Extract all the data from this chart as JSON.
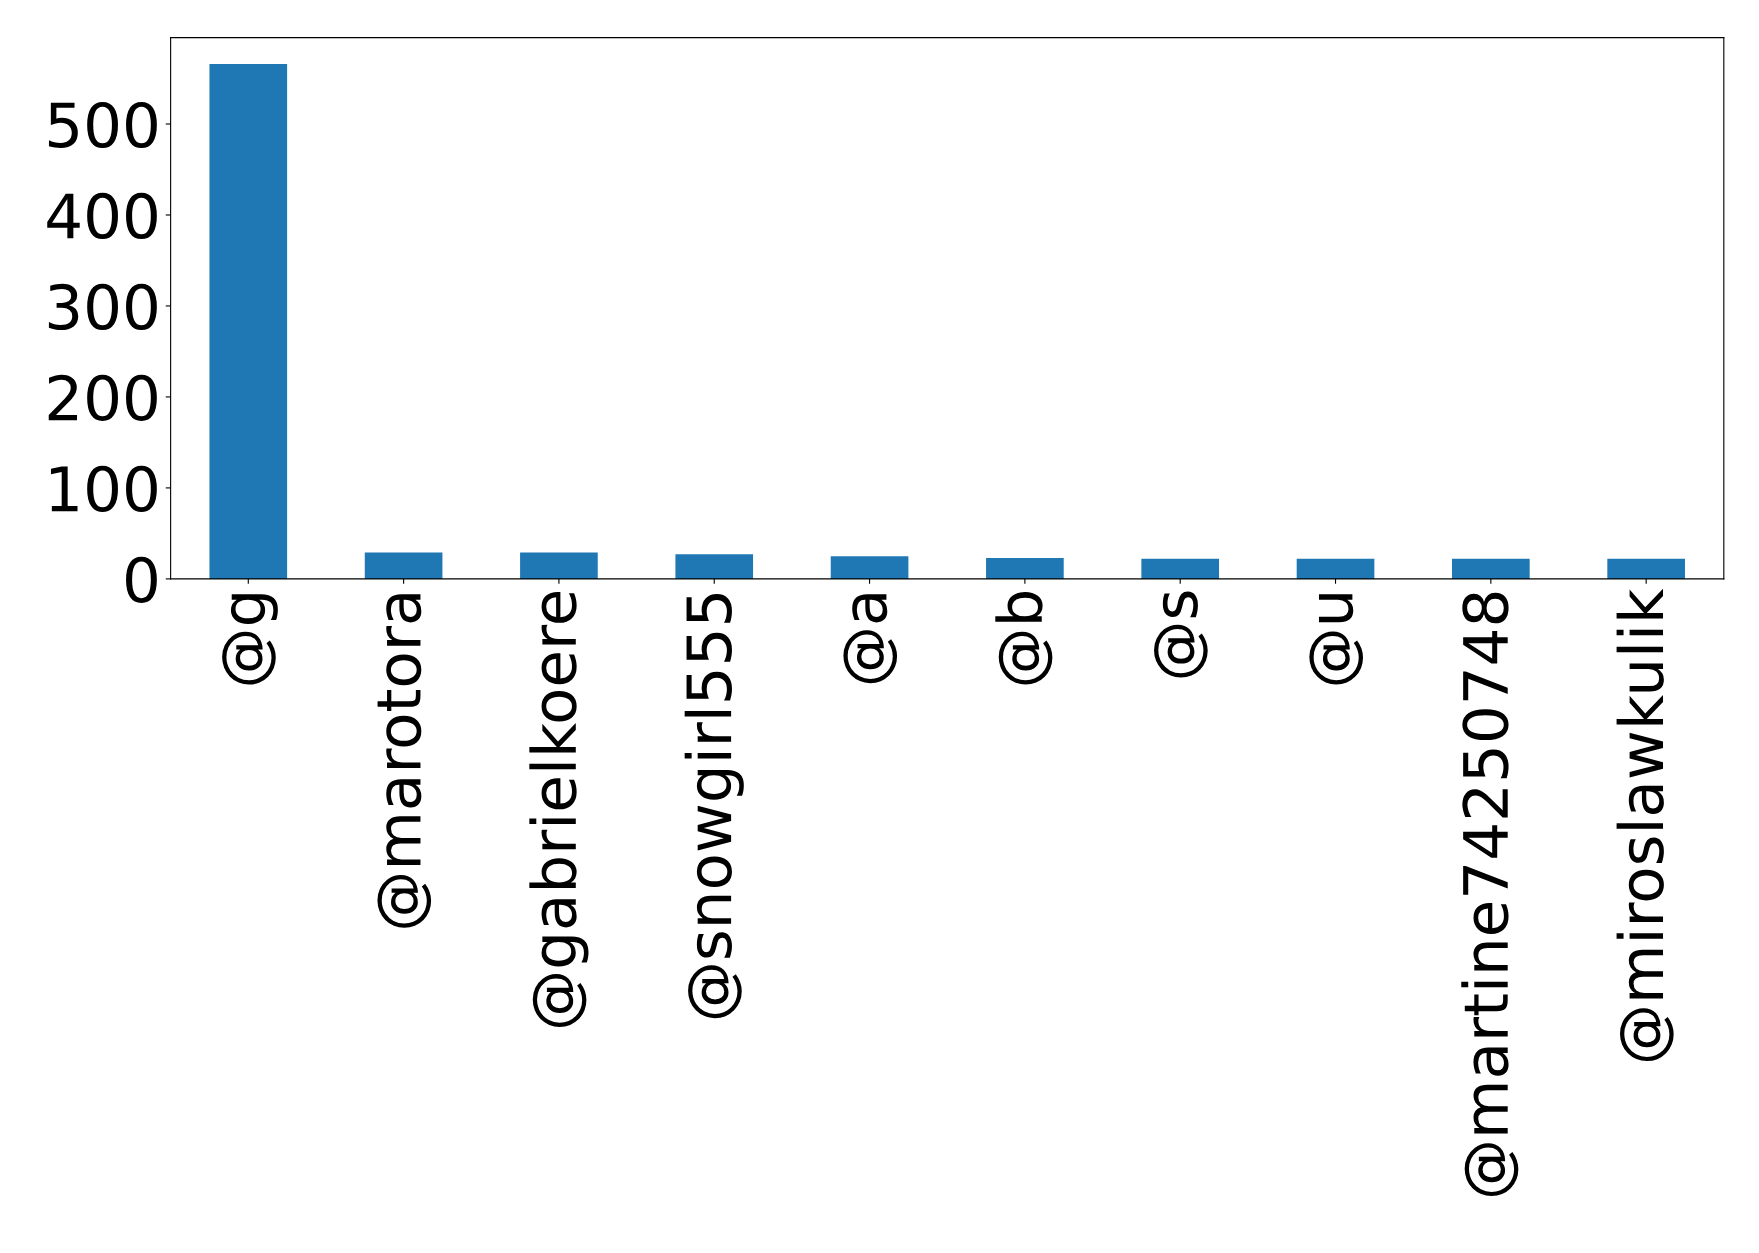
{
  "chart_data": {
    "type": "bar",
    "categories": [
      "@g",
      "@marotora",
      "@gabrielkoere",
      "@snowgirl555",
      "@a",
      "@b",
      "@s",
      "@u",
      "@martine74250748",
      "@miroslawkulik"
    ],
    "values": [
      566,
      29,
      29,
      27,
      25,
      23,
      22,
      22,
      22,
      22
    ],
    "color": "#1f77b4",
    "ylim": [
      0,
      595
    ],
    "yticks": [
      0,
      100,
      200,
      300,
      400,
      500
    ],
    "grid": false,
    "legend": false
  }
}
